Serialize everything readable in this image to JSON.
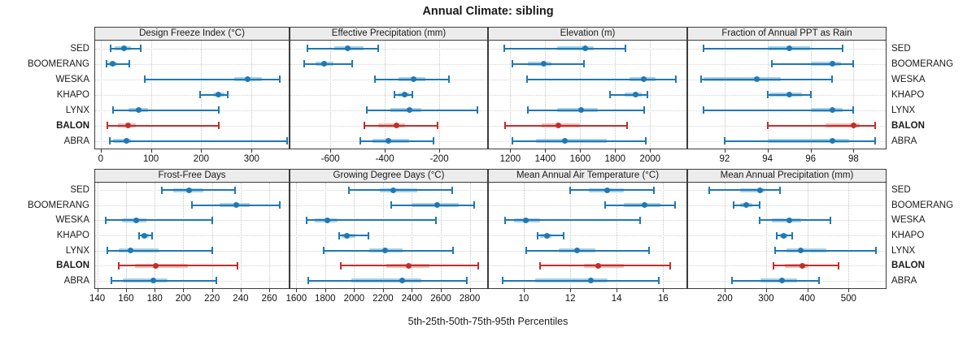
{
  "title": "Annual Climate: sibling",
  "caption": "5th-25th-50th-75th-95th Percentiles",
  "categories": [
    "SED",
    "BOOMERANG",
    "WESKA",
    "KHAPO",
    "LYNX",
    "BALON",
    "ABRA"
  ],
  "highlight_category": "BALON",
  "colors": {
    "series": "#1f78b4",
    "series_light": "#a9d0e5",
    "highlight": "#c22f2a",
    "highlight_light": "#f0bcb6",
    "strip_bg": "#ececec",
    "panel_border": "#3c3c3c",
    "gridline": "#c6c6c6"
  },
  "legend_note": "percentiles per row: [p5, p25, p50, p75, p95]",
  "chart_data": [
    {
      "type": "interval-dotplot",
      "row": 0,
      "col": 0,
      "title": "Design Freeze Index (°C)",
      "xlim": [
        -11,
        374
      ],
      "xticks": [
        0,
        100,
        200,
        300
      ],
      "series": [
        {
          "name": "SED",
          "values": [
            19,
            28,
            46,
            60,
            80
          ]
        },
        {
          "name": "BOOMERANG",
          "values": [
            12,
            17,
            23,
            33,
            57
          ]
        },
        {
          "name": "WESKA",
          "values": [
            88,
            265,
            293,
            320,
            356
          ]
        },
        {
          "name": "KHAPO",
          "values": [
            198,
            223,
            234,
            247,
            252
          ]
        },
        {
          "name": "LYNX",
          "values": [
            25,
            55,
            75,
            95,
            235
          ]
        },
        {
          "name": "BALON",
          "values": [
            13,
            35,
            55,
            70,
            235
          ]
        },
        {
          "name": "ABRA",
          "values": [
            18,
            25,
            52,
            60,
            370
          ]
        }
      ]
    },
    {
      "type": "interval-dotplot",
      "row": 0,
      "col": 1,
      "title": "Effective Precipitation (mm)",
      "xlim": [
        -747,
        -24
      ],
      "xticks": [
        -600,
        -400,
        -200
      ],
      "series": [
        {
          "name": "SED",
          "values": [
            -683,
            -587,
            -538,
            -479,
            -425
          ]
        },
        {
          "name": "BOOMERANG",
          "values": [
            -695,
            -655,
            -622,
            -588,
            -520
          ]
        },
        {
          "name": "WESKA",
          "values": [
            -435,
            -350,
            -296,
            -252,
            -165
          ]
        },
        {
          "name": "KHAPO",
          "values": [
            -365,
            -350,
            -328,
            -310,
            -300
          ]
        },
        {
          "name": "LYNX",
          "values": [
            -465,
            -380,
            -309,
            -266,
            -60
          ]
        },
        {
          "name": "BALON",
          "values": [
            -476,
            -425,
            -356,
            -326,
            -205
          ]
        },
        {
          "name": "ABRA",
          "values": [
            -489,
            -445,
            -387,
            -311,
            -222
          ]
        }
      ]
    },
    {
      "type": "interval-dotplot",
      "row": 0,
      "col": 2,
      "title": "Elevation (m)",
      "xlim": [
        1077,
        2208
      ],
      "xticks": [
        1200,
        1400,
        1600,
        1800,
        2000
      ],
      "series": [
        {
          "name": "SED",
          "values": [
            1165,
            1469,
            1628,
            1677,
            1858
          ]
        },
        {
          "name": "BOOMERANG",
          "values": [
            1212,
            1300,
            1392,
            1437,
            1623
          ]
        },
        {
          "name": "WESKA",
          "values": [
            1296,
            1884,
            1964,
            2031,
            2149
          ]
        },
        {
          "name": "KHAPO",
          "values": [
            1772,
            1854,
            1915,
            1954,
            1985
          ]
        },
        {
          "name": "LYNX",
          "values": [
            1300,
            1469,
            1605,
            1700,
            1964
          ]
        },
        {
          "name": "BALON",
          "values": [
            1169,
            1377,
            1477,
            1600,
            1869
          ]
        },
        {
          "name": "ABRA",
          "values": [
            1212,
            1346,
            1512,
            1754,
            1977
          ]
        }
      ]
    },
    {
      "type": "interval-dotplot",
      "row": 0,
      "col": 3,
      "title": "Fraction of Annual PPT as Rain",
      "xlim": [
        90.3,
        99.5
      ],
      "xticks": [
        92,
        94,
        96,
        98
      ],
      "series": [
        {
          "name": "SED",
          "values": [
            91,
            94,
            95,
            96,
            97.5
          ]
        },
        {
          "name": "BOOMERANG",
          "values": [
            94.2,
            96,
            97,
            97.4,
            98
          ]
        },
        {
          "name": "WESKA",
          "values": [
            90.9,
            91,
            93.5,
            94.6,
            97
          ]
        },
        {
          "name": "KHAPO",
          "values": [
            94,
            94.1,
            95,
            95.6,
            96
          ]
        },
        {
          "name": "LYNX",
          "values": [
            91,
            96,
            97,
            97.5,
            98
          ]
        },
        {
          "name": "BALON",
          "values": [
            94,
            96.7,
            98,
            98.3,
            99
          ]
        },
        {
          "name": "ABRA",
          "values": [
            92,
            94,
            97,
            97.8,
            99
          ]
        }
      ]
    },
    {
      "type": "interval-dotplot",
      "row": 1,
      "col": 0,
      "title": "Frost-Free Days",
      "xlim": [
        138.5,
        273.5
      ],
      "xticks": [
        140,
        160,
        180,
        200,
        220,
        240,
        260
      ],
      "series": [
        {
          "name": "SED",
          "values": [
            185,
            193,
            204,
            214,
            236
          ]
        },
        {
          "name": "BOOMERANG",
          "values": [
            206,
            225,
            237,
            246,
            267
          ]
        },
        {
          "name": "WESKA",
          "values": [
            146,
            157,
            167,
            174,
            220
          ]
        },
        {
          "name": "KHAPO",
          "values": [
            169,
            171,
            173,
            176,
            178
          ]
        },
        {
          "name": "LYNX",
          "values": [
            147,
            155,
            163,
            183,
            220
          ]
        },
        {
          "name": "BALON",
          "values": [
            155,
            166,
            181,
            203,
            238
          ]
        },
        {
          "name": "ABRA",
          "values": [
            150,
            158,
            179,
            189,
            223
          ]
        }
      ]
    },
    {
      "type": "interval-dotplot",
      "row": 1,
      "col": 1,
      "title": "Growing Degree Days (°C)",
      "xlim": [
        1559,
        2921
      ],
      "xticks": [
        1600,
        1800,
        2000,
        2200,
        2400,
        2600,
        2800
      ],
      "series": [
        {
          "name": "SED",
          "values": [
            1966,
            2176,
            2270,
            2437,
            2680
          ]
        },
        {
          "name": "BOOMERANG",
          "values": [
            2256,
            2400,
            2577,
            2725,
            2832
          ]
        },
        {
          "name": "WESKA",
          "values": [
            1669,
            1730,
            1814,
            1888,
            2567
          ]
        },
        {
          "name": "KHAPO",
          "values": [
            1898,
            1916,
            1950,
            2009,
            2099
          ]
        },
        {
          "name": "LYNX",
          "values": [
            1792,
            2102,
            2213,
            2335,
            2683
          ]
        },
        {
          "name": "BALON",
          "values": [
            1907,
            2223,
            2378,
            2521,
            2861
          ]
        },
        {
          "name": "ABRA",
          "values": [
            1680,
            1981,
            2335,
            2465,
            2781
          ]
        }
      ]
    },
    {
      "type": "interval-dotplot",
      "row": 1,
      "col": 2,
      "title": "Mean Annual Air Temperature (°C)",
      "xlim": [
        8.5,
        17.0
      ],
      "xticks": [
        10,
        12,
        14,
        16
      ],
      "series": [
        {
          "name": "SED",
          "values": [
            12.0,
            12.8,
            13.6,
            14.3,
            15.6
          ]
        },
        {
          "name": "BOOMERANG",
          "values": [
            13.5,
            14.3,
            15.2,
            15.9,
            16.5
          ]
        },
        {
          "name": "WESKA",
          "values": [
            9.2,
            9.6,
            10.1,
            10.7,
            15.0
          ]
        },
        {
          "name": "KHAPO",
          "values": [
            10.6,
            10.7,
            11.0,
            11.2,
            11.7
          ]
        },
        {
          "name": "LYNX",
          "values": [
            10.1,
            11.5,
            12.3,
            13.1,
            15.4
          ]
        },
        {
          "name": "BALON",
          "values": [
            10.7,
            12.6,
            13.2,
            14.3,
            16.3
          ]
        },
        {
          "name": "ABRA",
          "values": [
            9.1,
            10.5,
            12.9,
            13.6,
            15.8
          ]
        }
      ]
    },
    {
      "type": "interval-dotplot",
      "row": 1,
      "col": 3,
      "title": "Mean Annual Precipitation (mm)",
      "xlim": [
        111,
        590
      ],
      "xticks": [
        200,
        300,
        400,
        500
      ],
      "series": [
        {
          "name": "SED",
          "values": [
            163,
            238,
            285,
            297,
            334
          ]
        },
        {
          "name": "BOOMERANG",
          "values": [
            222,
            238,
            252,
            267,
            284
          ]
        },
        {
          "name": "WESKA",
          "values": [
            285,
            313,
            357,
            385,
            455
          ]
        },
        {
          "name": "KHAPO",
          "values": [
            325,
            333,
            343,
            352,
            363
          ]
        },
        {
          "name": "LYNX",
          "values": [
            322,
            349,
            383,
            446,
            566
          ]
        },
        {
          "name": "BALON",
          "values": [
            317,
            345,
            388,
            402,
            475
          ]
        },
        {
          "name": "ABRA",
          "values": [
            218,
            287,
            338,
            375,
            428
          ]
        }
      ]
    }
  ]
}
